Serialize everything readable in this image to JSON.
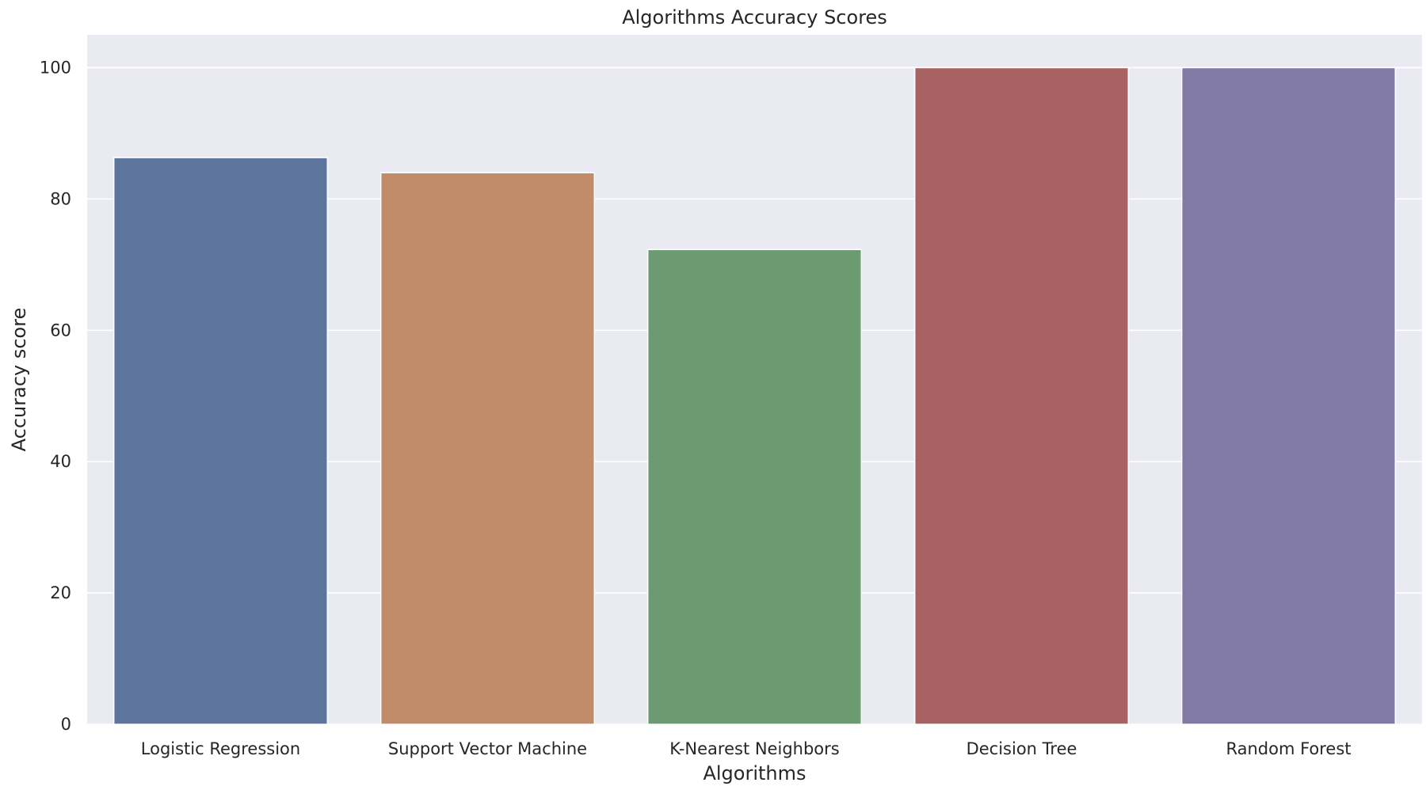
{
  "chart_data": {
    "type": "bar",
    "title": "Algorithms Accuracy Scores",
    "xlabel": "Algorithms",
    "ylabel": "Accuracy score",
    "categories": [
      "Logistic Regression",
      "Support Vector Machine",
      "K-Nearest Neighbors",
      "Decision Tree",
      "Random Forest"
    ],
    "values": [
      86.3,
      84.0,
      72.3,
      100,
      100
    ],
    "colors": [
      "#5d749c",
      "#c28b69",
      "#6c9b71",
      "#a86262",
      "#827aa6"
    ],
    "ylim": [
      0,
      105
    ],
    "yticks": [
      0,
      20,
      40,
      60,
      80,
      100
    ],
    "grid": true,
    "background": "#eaeaf2"
  }
}
